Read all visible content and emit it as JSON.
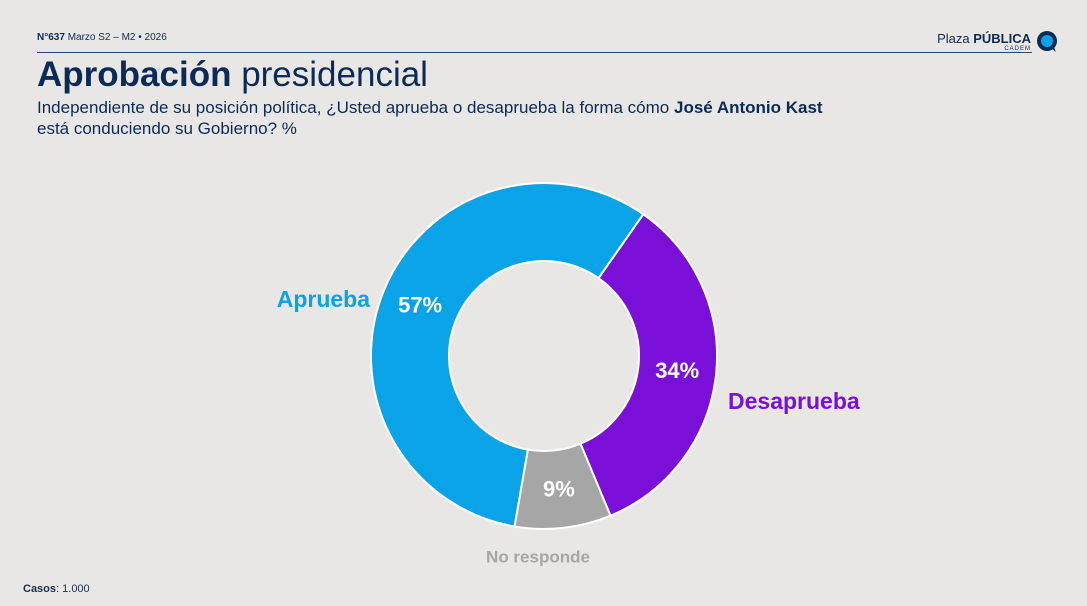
{
  "header": {
    "number": "N°637",
    "period": "Marzo S2 – M2 • 2026"
  },
  "logo": {
    "word1": "Plaza",
    "word2": "PÚBLICA",
    "sub": "CADEM"
  },
  "title": {
    "bold": "Aprobación",
    "light": "presidencial"
  },
  "subtitle": {
    "part1": "Independiente de su posición política, ¿Usted aprueba o desaprueba la forma cómo",
    "name": "José Antonio Kast",
    "part2": "está conduciendo su Gobierno? %"
  },
  "footer": {
    "label": "Casos",
    "value": ": 1.000"
  },
  "colors": {
    "aprueba": "#0aa3e8",
    "desaprueba": "#7a0fd8",
    "noresponde": "#a6a6a6",
    "navy": "#0b2a55"
  },
  "chart_data": {
    "type": "pie",
    "donut": true,
    "title": "Aprobación presidencial",
    "slices": [
      {
        "label": "Desaprueba",
        "value": 34,
        "value_label": "34%",
        "color": "#7a0fd8"
      },
      {
        "label": "No responde",
        "value": 9,
        "value_label": "9%",
        "color": "#a6a6a6"
      },
      {
        "label": "Aprueba",
        "value": 57,
        "value_label": "57%",
        "color": "#0aa3e8"
      }
    ],
    "unit": "%"
  }
}
